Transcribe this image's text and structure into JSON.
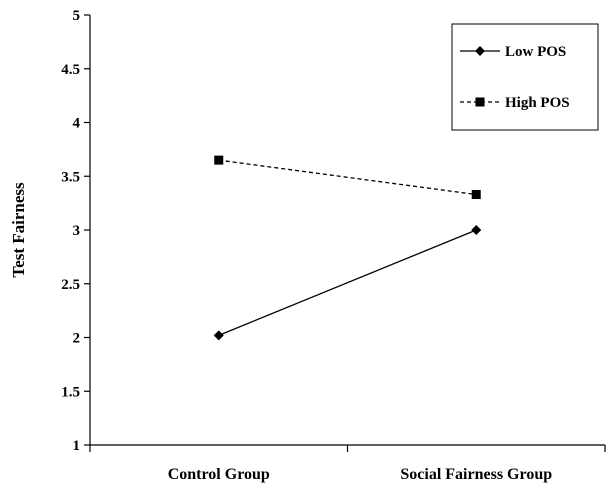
{
  "chart_data": {
    "type": "line",
    "categories": [
      "Control Group",
      "Social Fairness Group"
    ],
    "series": [
      {
        "name": "Low POS",
        "values": [
          2.02,
          3.0
        ],
        "line_style": "solid",
        "marker": "diamond",
        "color": "#000000"
      },
      {
        "name": "High POS",
        "values": [
          3.65,
          3.33
        ],
        "line_style": "dashed",
        "marker": "square",
        "color": "#000000"
      }
    ],
    "title": "",
    "xlabel": "",
    "ylabel": "Test Fairness",
    "ylim": [
      1,
      5
    ],
    "yticks": [
      "1",
      "1.5",
      "2",
      "2.5",
      "3",
      "3.5",
      "4",
      "4.5",
      "5"
    ],
    "grid": false,
    "legend_position": "top-right"
  }
}
